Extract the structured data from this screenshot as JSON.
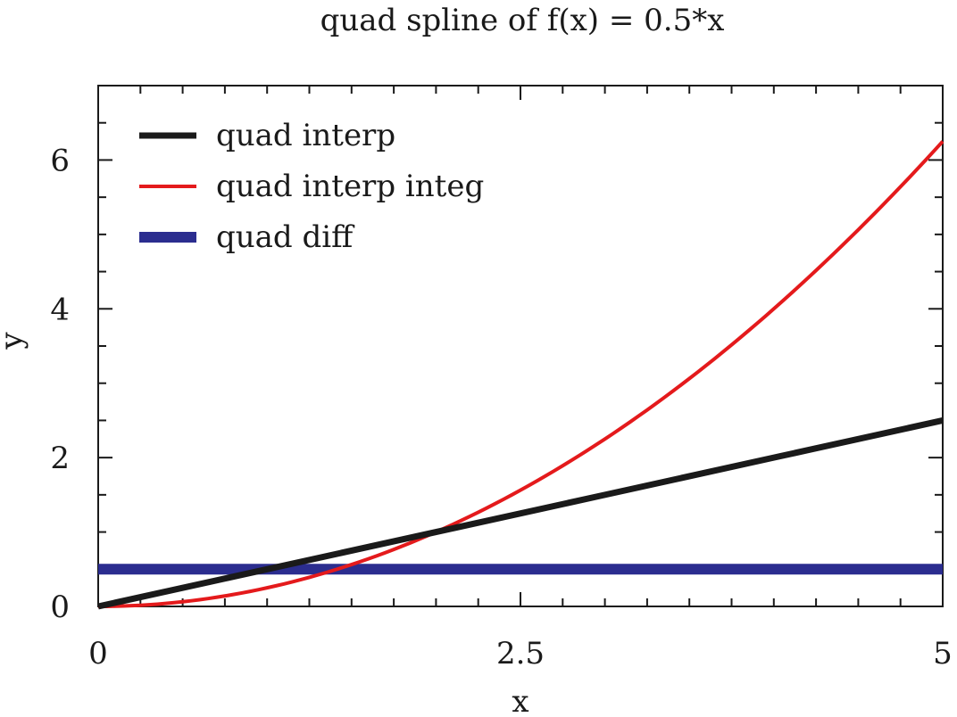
{
  "chart_data": {
    "type": "line",
    "title": "quad spline of f(x) = 0.5*x",
    "xlabel": "x",
    "ylabel": "y",
    "xlim": [
      0,
      5
    ],
    "ylim": [
      0,
      7
    ],
    "xticks": [
      0,
      2.5,
      5
    ],
    "xtick_labels": [
      "0",
      "2.5",
      "5"
    ],
    "yticks": [
      0,
      2,
      4,
      6
    ],
    "ytick_labels": [
      "0",
      "2",
      "4",
      "6"
    ],
    "grid": false,
    "legend": "top-left",
    "series": [
      {
        "name": "quad interp",
        "color": "#1a1a1a",
        "x": [
          0,
          1,
          2,
          3,
          4,
          5
        ],
        "y": [
          0,
          0.5,
          1,
          1.5,
          2,
          2.5
        ]
      },
      {
        "name": "quad interp integ",
        "color": "#e41a1c",
        "x": [
          0,
          0.5,
          1,
          1.5,
          2,
          2.5,
          3,
          3.5,
          4,
          4.5,
          5
        ],
        "y": [
          0,
          0.0625,
          0.25,
          0.5625,
          1,
          1.5625,
          2.25,
          3.0625,
          4,
          5.0625,
          6.25
        ]
      },
      {
        "name": "quad diff",
        "color": "#2b2d8f",
        "x": [
          0,
          5
        ],
        "y": [
          0.5,
          0.5
        ]
      }
    ]
  }
}
